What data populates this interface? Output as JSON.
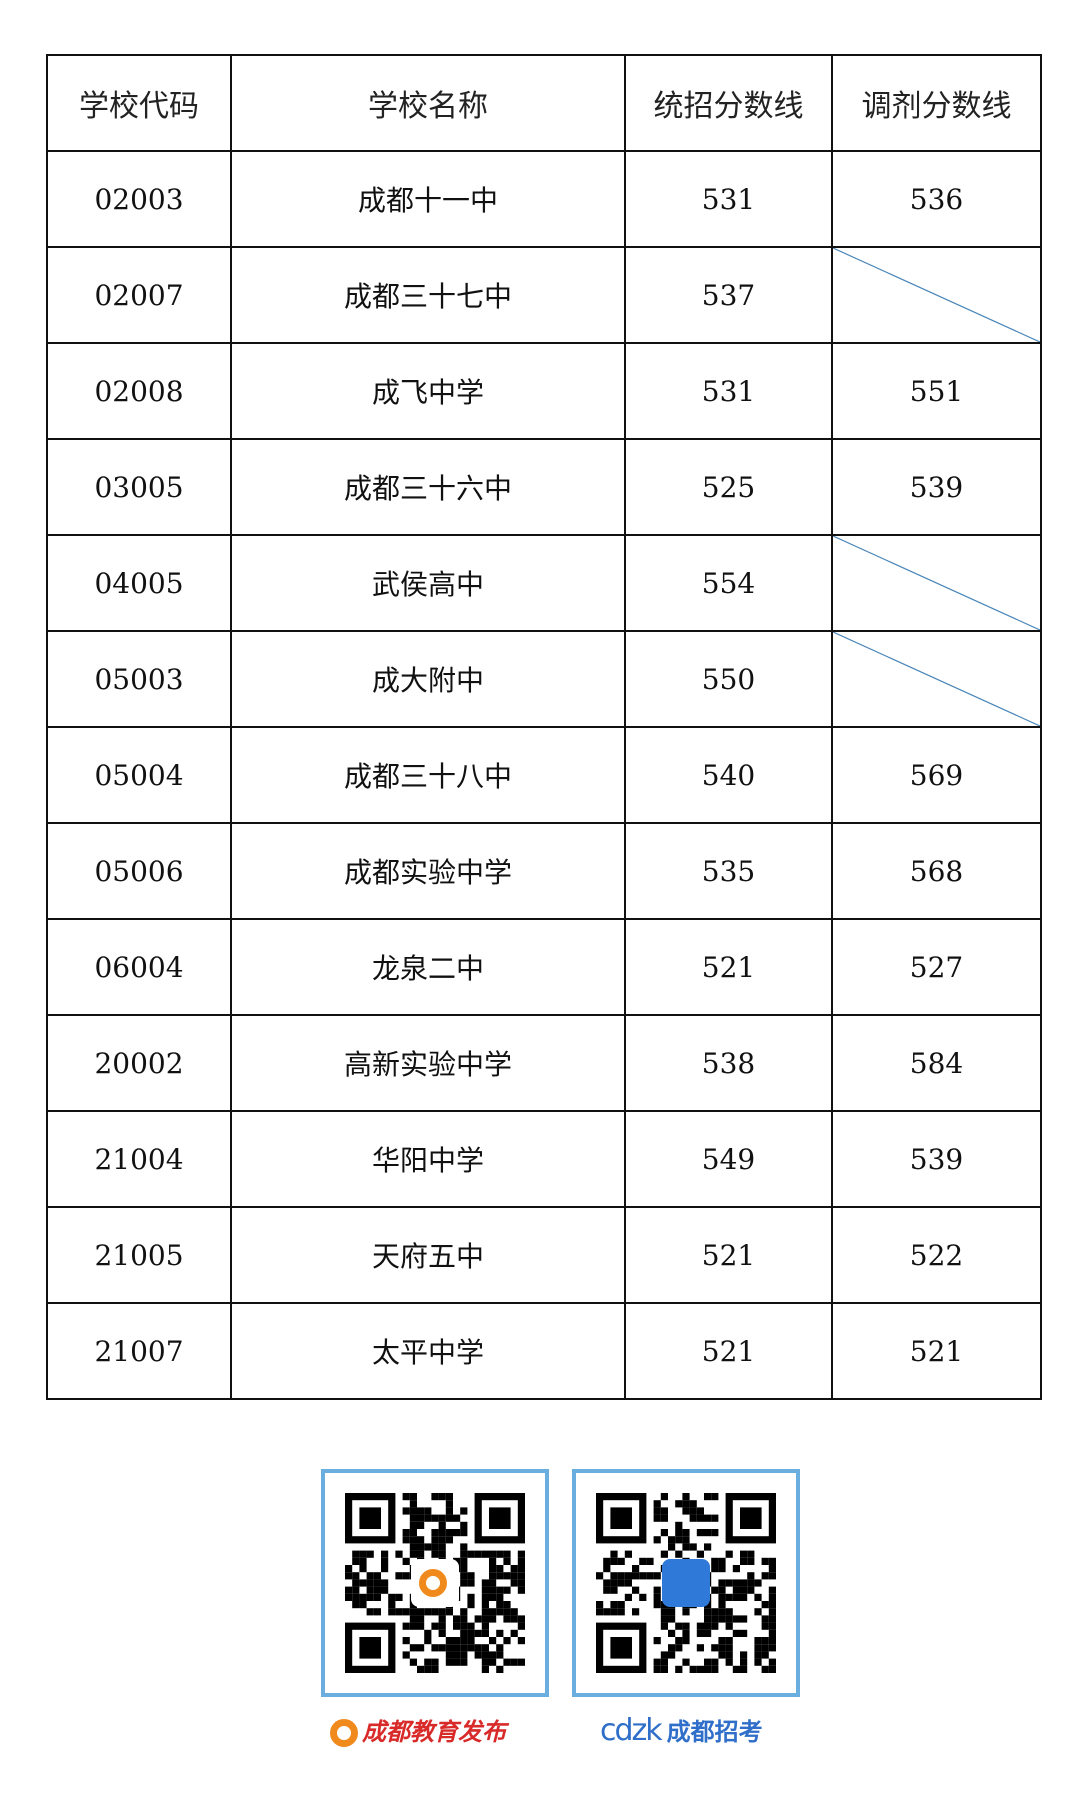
{
  "table": {
    "headers": [
      "学校代码",
      "学校名称",
      "统招分数线",
      "调剂分数线"
    ],
    "rows": [
      {
        "code": "02003",
        "name": "成都十一中",
        "unified": "531",
        "adjusted": "536"
      },
      {
        "code": "02007",
        "name": "成都三十七中",
        "unified": "537",
        "adjusted": null
      },
      {
        "code": "02008",
        "name": "成飞中学",
        "unified": "531",
        "adjusted": "551"
      },
      {
        "code": "03005",
        "name": "成都三十六中",
        "unified": "525",
        "adjusted": "539"
      },
      {
        "code": "04005",
        "name": "武侯高中",
        "unified": "554",
        "adjusted": null
      },
      {
        "code": "05003",
        "name": "成大附中",
        "unified": "550",
        "adjusted": null
      },
      {
        "code": "05004",
        "name": "成都三十八中",
        "unified": "540",
        "adjusted": "569"
      },
      {
        "code": "05006",
        "name": "成都实验中学",
        "unified": "535",
        "adjusted": "568"
      },
      {
        "code": "06004",
        "name": "龙泉二中",
        "unified": "521",
        "adjusted": "527"
      },
      {
        "code": "20002",
        "name": "高新实验中学",
        "unified": "538",
        "adjusted": "584"
      },
      {
        "code": "21004",
        "name": "华阳中学",
        "unified": "549",
        "adjusted": "539"
      },
      {
        "code": "21005",
        "name": "天府五中",
        "unified": "521",
        "adjusted": "522"
      },
      {
        "code": "21007",
        "name": "太平中学",
        "unified": "521",
        "adjusted": "521"
      }
    ]
  },
  "footer": {
    "brand1": "成都教育发布",
    "brand2_logo": "cdzk",
    "brand2": "成都招考",
    "qr_border_color": "#6aaee0",
    "slash_color": "#4a86b8"
  }
}
